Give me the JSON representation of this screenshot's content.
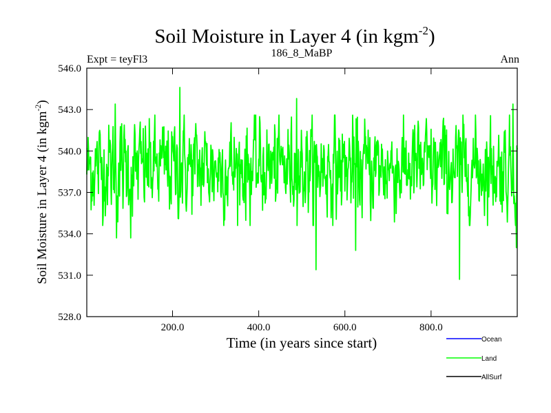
{
  "chart_data": {
    "type": "line",
    "title_main": "Soil Moisture in Layer 4 (in kgm",
    "title_sup": "-2",
    "title_close": ")",
    "subtitle_left": "Expt = teyFl3",
    "subtitle_center": "186_8_MaBP",
    "subtitle_right": "Ann",
    "xlabel": "Time (in years since start)",
    "ylabel_main": "Soil Moisture in Layer 4 (in kgm",
    "ylabel_sup": "-2",
    "ylabel_close": ")",
    "xlim": [
      1,
      1000
    ],
    "ylim": [
      528,
      546
    ],
    "x_ticks": [
      200,
      400,
      600,
      800
    ],
    "x_tick_labels": [
      "200.0",
      "400.0",
      "600.0",
      "800.0"
    ],
    "y_ticks": [
      528,
      531,
      534,
      537,
      540,
      543,
      546
    ],
    "y_tick_labels": [
      "528.0",
      "531.0",
      "534.0",
      "537.0",
      "540.0",
      "543.0",
      "546.0"
    ],
    "series_colors": {
      "Ocean": "#0000ff",
      "Land": "#00ff00",
      "AllSurf": "#000000"
    },
    "legend": [
      {
        "name": "Ocean",
        "color": "#0000ff"
      },
      {
        "name": "Land",
        "color": "#00ff00"
      },
      {
        "name": "AllSurf",
        "color": "#000000"
      }
    ],
    "land_series": {
      "name": "Land",
      "x_start": 1,
      "x_step": 1,
      "baseline_mean": 538.8,
      "noise_sd": 1.7,
      "annotated_extremes": [
        {
          "x": 217,
          "y": 544.6
        },
        {
          "x": 488,
          "y": 543.8
        },
        {
          "x": 67,
          "y": 543.4
        },
        {
          "x": 990,
          "y": 543.4
        },
        {
          "x": 533,
          "y": 531.4
        },
        {
          "x": 866,
          "y": 530.7
        },
        {
          "x": 625,
          "y": 532.8
        },
        {
          "x": 70,
          "y": 533.7
        },
        {
          "x": 103,
          "y": 533.7
        },
        {
          "x": 998,
          "y": 533.0
        }
      ]
    }
  }
}
